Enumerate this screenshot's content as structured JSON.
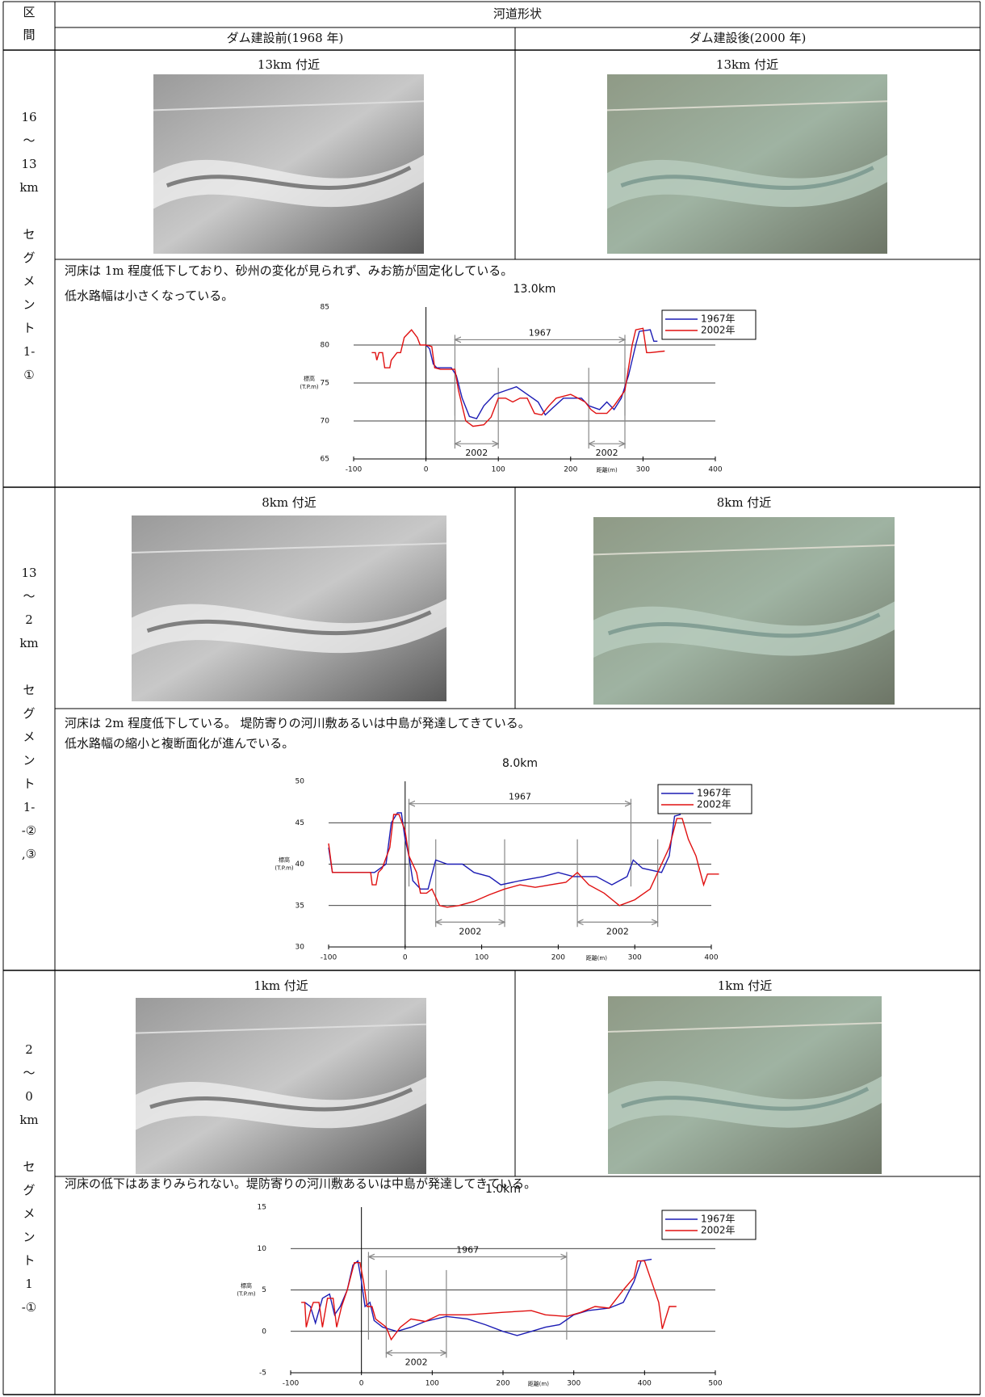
{
  "table": {
    "header": {
      "section_label": [
        "区",
        "間"
      ],
      "title": "河道形状",
      "before": "ダム建設前(1968 年)",
      "after": "ダム建設後(2000 年)"
    },
    "sections": [
      {
        "label": [
          "16",
          "～",
          "13",
          "km",
          "セ",
          "グ",
          "メ",
          "ン",
          "ト",
          "1-",
          "①"
        ],
        "before_caption": "13km 付近",
        "after_caption": "13km 付近",
        "description": [
          "河床は 1m 程度低下しており、砂州の変化が見られず、みお筋が固定化している。",
          "低水路幅は小さくなっている。"
        ]
      },
      {
        "label": [
          "13",
          "～",
          "2",
          "km",
          "セ",
          "グ",
          "メ",
          "ン",
          "ト",
          "1-",
          "-②",
          ",③"
        ],
        "before_caption": "8km 付近",
        "after_caption": "8km 付近",
        "description": [
          "河床は 2m 程度低下している。 堤防寄りの河川敷あるいは中島が発達してきている。",
          "低水路幅の縮小と複断面化が進んでいる。"
        ]
      },
      {
        "label": [
          "2",
          "～",
          "0",
          "km",
          "セ",
          "グ",
          "メ",
          "ン",
          "ト",
          "1",
          "-①"
        ],
        "before_caption": "1km 付近",
        "after_caption": "1km 付近",
        "description": [
          "河床の低下はあまりみられない。堤防寄りの河川敷あるいは中島が発達してきている。"
        ]
      }
    ]
  },
  "chart_data": [
    {
      "type": "line",
      "title": "13.0km",
      "y_label": [
        "標高",
        "(T.P.m)"
      ],
      "x_label": "距離(m)",
      "xlim": [
        -100,
        400
      ],
      "xticks": [
        -100,
        0,
        100,
        200,
        300,
        400
      ],
      "ylim": [
        65,
        85
      ],
      "yticks": [
        65,
        70,
        75,
        80,
        85
      ],
      "grid": true,
      "legend": "upper right",
      "series": [
        {
          "name": "1967年",
          "color": "#1c1cb4",
          "x": [
            0,
            5,
            10,
            15,
            35,
            42,
            50,
            60,
            70,
            80,
            95,
            110,
            125,
            140,
            155,
            165,
            175,
            190,
            205,
            215,
            225,
            240,
            250,
            260,
            270,
            280,
            290,
            295,
            310,
            315,
            320
          ],
          "values": [
            80,
            79.5,
            77.5,
            77,
            77,
            76,
            73,
            70.6,
            70.3,
            72,
            73.5,
            74,
            74.5,
            73.5,
            72.5,
            70.8,
            71.7,
            73,
            73,
            73,
            72,
            71.5,
            72.5,
            71.5,
            73,
            76,
            80,
            81.8,
            82,
            80.5,
            80.5
          ]
        },
        {
          "name": "2002年",
          "color": "#e01010",
          "x": [
            -75,
            -70,
            -68,
            -65,
            -60,
            -57,
            -50,
            -48,
            -40,
            -35,
            -30,
            -20,
            -12,
            -8,
            0,
            8,
            12,
            20,
            40,
            45,
            55,
            65,
            80,
            90,
            100,
            110,
            120,
            130,
            140,
            150,
            160,
            170,
            180,
            200,
            210,
            220,
            228,
            235,
            250,
            260,
            275,
            285,
            290,
            300,
            305,
            310,
            330
          ],
          "values": [
            79,
            79,
            78,
            79,
            79,
            77,
            77,
            78,
            79,
            79,
            81,
            82,
            81,
            80,
            80,
            79.8,
            77,
            76.8,
            76.8,
            74,
            70,
            69.3,
            69.5,
            70.5,
            73,
            73,
            72.5,
            73,
            73,
            71,
            70.8,
            72,
            73,
            73.5,
            73,
            72.5,
            71.5,
            71,
            71,
            72,
            74,
            80,
            82,
            82.2,
            79,
            79,
            79.2
          ]
        }
      ],
      "annotations": [
        {
          "label": "1967",
          "from": 40,
          "to": 275,
          "y": 80.7
        },
        {
          "label": "2002",
          "from": 40,
          "to": 100,
          "y": 67
        },
        {
          "label": "2002",
          "from": 225,
          "to": 275,
          "y": 67
        }
      ]
    },
    {
      "type": "line",
      "title": "8.0km",
      "y_label": [
        "標高",
        "(T.P.m)"
      ],
      "x_label": "距離(m)",
      "xlim": [
        -100,
        400
      ],
      "xticks": [
        -100,
        0,
        100,
        200,
        300,
        400
      ],
      "ylim": [
        30,
        50
      ],
      "yticks": [
        30,
        35,
        40,
        45,
        50
      ],
      "grid": true,
      "legend": "upper right",
      "series": [
        {
          "name": "1967年",
          "color": "#1c1cb4",
          "x": [
            -100,
            -95,
            -40,
            -25,
            -18,
            -10,
            -5,
            0,
            5,
            10,
            20,
            30,
            40,
            55,
            75,
            90,
            110,
            125,
            150,
            180,
            200,
            220,
            250,
            270,
            290,
            298,
            310,
            335,
            345,
            352,
            360
          ],
          "values": [
            42,
            39,
            39,
            40,
            45,
            46.2,
            46.2,
            43,
            41,
            38,
            37,
            37,
            40.5,
            40,
            40,
            39,
            38.5,
            37.5,
            38,
            38.5,
            39,
            38.5,
            38.5,
            37.5,
            38.5,
            40.5,
            39.5,
            39,
            41,
            45.8,
            46
          ]
        },
        {
          "name": "2002年",
          "color": "#e01010",
          "x": [
            -100,
            -95,
            -90,
            -45,
            -43,
            -38,
            -35,
            -30,
            -20,
            -15,
            -8,
            0,
            5,
            15,
            20,
            28,
            35,
            45,
            55,
            70,
            90,
            110,
            130,
            150,
            170,
            190,
            210,
            225,
            240,
            260,
            280,
            300,
            320,
            330,
            345,
            355,
            362,
            370,
            380,
            390,
            395,
            410
          ],
          "values": [
            42.5,
            39,
            39,
            39,
            37.5,
            37.5,
            39,
            39.5,
            42,
            46,
            46,
            44,
            41,
            39,
            36.5,
            36.5,
            37,
            35,
            34.8,
            35,
            35.5,
            36.3,
            37,
            37.5,
            37.2,
            37.5,
            37.8,
            39,
            37.5,
            36.5,
            35,
            35.7,
            37,
            39,
            42,
            45.5,
            45.5,
            43,
            41,
            37.5,
            38.8,
            38.8
          ]
        }
      ],
      "annotations": [
        {
          "label": "1967",
          "from": 5,
          "to": 295,
          "y": 47.3
        },
        {
          "label": "2002",
          "from": 40,
          "to": 130,
          "y": 33
        },
        {
          "label": "2002",
          "from": 225,
          "to": 330,
          "y": 33
        }
      ]
    },
    {
      "type": "line",
      "title": "1.0km",
      "y_label": [
        "標高",
        "(T.P.m)"
      ],
      "x_label": "距離(m)",
      "xlim": [
        -100,
        500
      ],
      "xticks": [
        -100,
        0,
        100,
        200,
        300,
        400,
        500
      ],
      "ylim": [
        -5,
        15
      ],
      "yticks": [
        -5,
        0,
        5,
        10,
        15
      ],
      "grid": true,
      "legend": "upper right",
      "series": [
        {
          "name": "1967年",
          "color": "#1c1cb4",
          "x": [
            -80,
            -72,
            -65,
            -55,
            -45,
            -38,
            -30,
            -20,
            -12,
            -5,
            0,
            5,
            12,
            18,
            30,
            50,
            70,
            90,
            120,
            150,
            175,
            200,
            220,
            240,
            260,
            280,
            300,
            320,
            350,
            370,
            385,
            395,
            410
          ],
          "values": [
            3.5,
            3,
            1,
            4,
            4.5,
            2,
            3,
            5,
            8,
            8.5,
            6,
            3,
            3.5,
            1.3,
            0.5,
            0,
            0.5,
            1.2,
            1.8,
            1.5,
            0.8,
            0,
            -0.5,
            0,
            0.5,
            0.8,
            2,
            2.5,
            2.8,
            3.5,
            6,
            8.5,
            8.7
          ]
        },
        {
          "name": "2002年",
          "color": "#e01010",
          "x": [
            -85,
            -80,
            -78,
            -72,
            -68,
            -60,
            -55,
            -48,
            -40,
            -35,
            -28,
            -20,
            -10,
            -2,
            3,
            8,
            15,
            20,
            35,
            42,
            55,
            70,
            90,
            110,
            150,
            200,
            240,
            260,
            290,
            310,
            330,
            350,
            370,
            385,
            390,
            400,
            410,
            420,
            425,
            435,
            445
          ],
          "values": [
            3.5,
            3.5,
            0.5,
            2.5,
            3.5,
            3.5,
            0.5,
            4,
            4,
            0.5,
            3,
            5,
            8.3,
            8.3,
            6,
            3,
            3,
            1.5,
            0.5,
            -1,
            0.5,
            1.5,
            1.2,
            2,
            2,
            2.3,
            2.5,
            2,
            1.8,
            2.3,
            3,
            2.8,
            5,
            6.5,
            8.5,
            8.5,
            6,
            3.5,
            0.3,
            3,
            3
          ]
        }
      ],
      "annotations": [
        {
          "label": "1967",
          "from": 10,
          "to": 290,
          "y": 9
        },
        {
          "label": "2002",
          "from": 35,
          "to": 120,
          "y": -2.6
        }
      ]
    }
  ]
}
